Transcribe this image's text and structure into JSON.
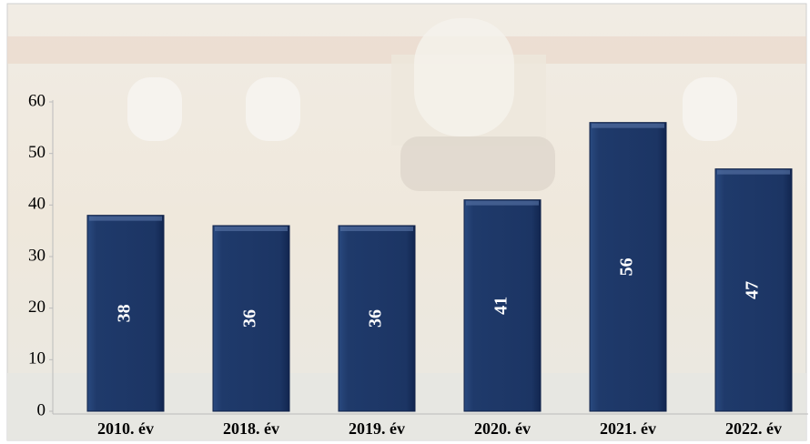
{
  "chart_data": {
    "type": "bar",
    "categories": [
      "2010. év",
      "2018. év",
      "2019. év",
      "2020. év",
      "2021. év",
      "2022. év"
    ],
    "values": [
      38,
      36,
      36,
      41,
      56,
      47
    ],
    "color": "#1f3a6b",
    "ylim": [
      0,
      60
    ],
    "yticks": [
      0,
      10,
      20,
      30,
      40,
      50,
      60
    ],
    "grid": false
  }
}
